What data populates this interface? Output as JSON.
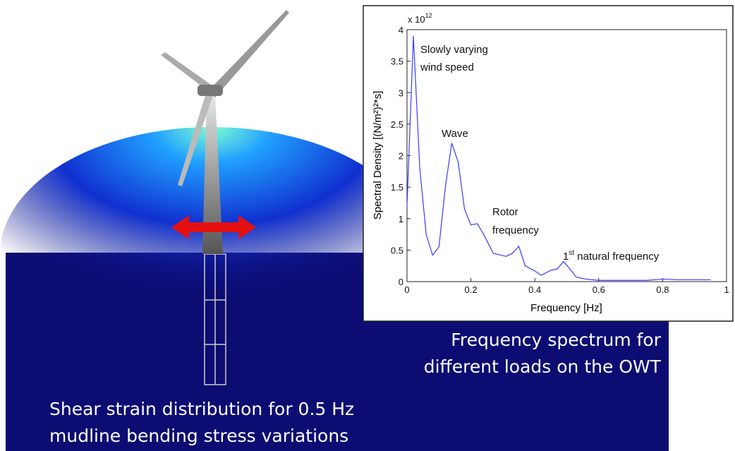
{
  "chart_data": {
    "type": "line",
    "y_multiplier": {
      "base": "x 10",
      "exponent": "12"
    },
    "xlabel": "Frequency [Hz]",
    "ylabel": "Spectral Density [(N/m²)²*s]",
    "annotations": [
      "Slowly varying",
      "wind speed",
      "Wave",
      "Rotor",
      "frequency"
    ],
    "natural_frequency_label": {
      "base": "1",
      "superscript": "st",
      "rest": " natural frequency"
    },
    "color": "#3a3aff",
    "x": [
      0,
      0.02,
      0.04,
      0.06,
      0.08,
      0.1,
      0.12,
      0.14,
      0.16,
      0.18,
      0.2,
      0.22,
      0.24,
      0.27,
      0.31,
      0.33,
      0.35,
      0.37,
      0.4,
      0.42,
      0.45,
      0.47,
      0.49,
      0.51,
      0.53,
      0.56,
      0.6,
      0.65,
      0.7,
      0.75,
      0.8,
      0.85,
      0.9,
      0.95
    ],
    "values": [
      1.2,
      3.9,
      1.8,
      0.75,
      0.42,
      0.55,
      1.5,
      2.2,
      1.9,
      1.15,
      0.9,
      0.92,
      0.75,
      0.45,
      0.4,
      0.45,
      0.56,
      0.25,
      0.17,
      0.1,
      0.18,
      0.2,
      0.32,
      0.2,
      0.07,
      0.04,
      0.02,
      0.02,
      0.02,
      0.02,
      0.04,
      0.03,
      0.03,
      0.03
    ],
    "xlim": [
      0,
      1
    ],
    "xticks": [
      0,
      0.2,
      0.4,
      0.6,
      0.8,
      1
    ],
    "ylim": [
      0,
      4
    ],
    "yticks": [
      0,
      0.5,
      1,
      1.5,
      2,
      2.5,
      3,
      3.5,
      4
    ]
  },
  "captions": {
    "spectrum": [
      "Frequency spectrum for",
      "different loads on the OWT"
    ],
    "strain": [
      "Shear strain distribution for 0.5 Hz",
      "mudline bending stress variations"
    ]
  }
}
